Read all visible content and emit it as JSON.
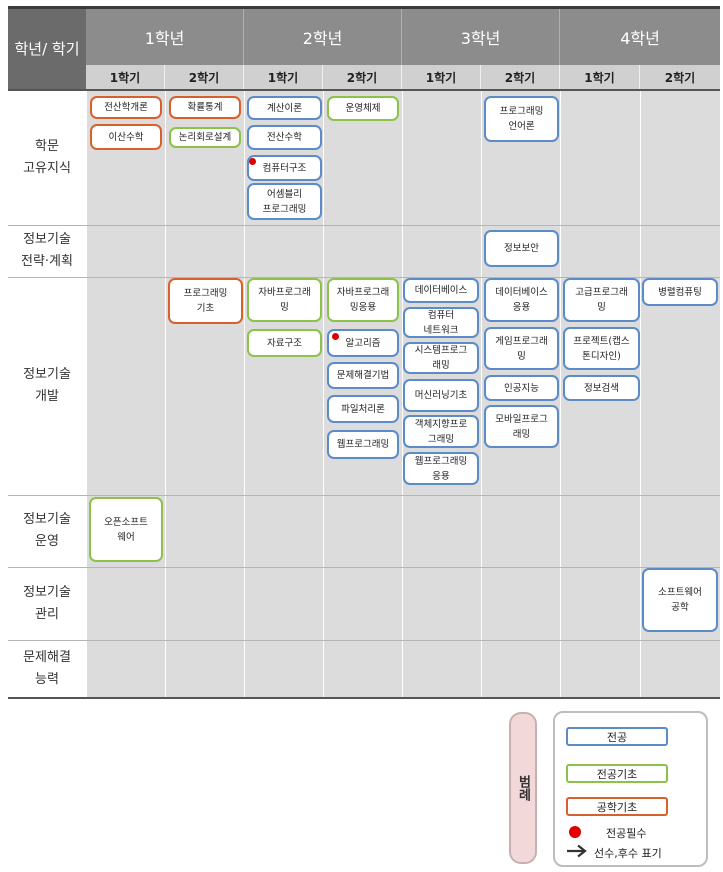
{
  "header": {
    "corner": "학년/\n학기",
    "years": [
      "1학년",
      "2학년",
      "3학년",
      "4학년"
    ],
    "semesters": [
      "1학기",
      "2학기",
      "1학기",
      "2학기",
      "1학기",
      "2학기",
      "1학기",
      "2학기"
    ]
  },
  "rows": [
    {
      "label": "학문\n고유지식"
    },
    {
      "label": "정보기술\n전략·계획"
    },
    {
      "label": "정보기술\n개발"
    },
    {
      "label": "정보기술\n운영"
    },
    {
      "label": "정보기술\n관리"
    },
    {
      "label": "문제해결\n능력"
    }
  ],
  "courses": {
    "c1": {
      "label": "전산학개론",
      "type": "eng"
    },
    "c2": {
      "label": "이산수학",
      "type": "eng"
    },
    "c3": {
      "label": "확률통계",
      "type": "eng"
    },
    "c4": {
      "label": "논리회로설계",
      "type": "basic"
    },
    "c5": {
      "label": "계산이론",
      "type": "major"
    },
    "c6": {
      "label": "전산수학",
      "type": "major"
    },
    "c7": {
      "label": "컴퓨터구조",
      "type": "major",
      "required": true
    },
    "c8": {
      "label": "어셈블리\n프로그래밍",
      "type": "major"
    },
    "c9": {
      "label": "운영체제",
      "type": "basic"
    },
    "c10": {
      "label": "프로그래밍\n언어론",
      "type": "major"
    },
    "c11": {
      "label": "정보보안",
      "type": "major"
    },
    "c12": {
      "label": "프로그래밍\n기초",
      "type": "eng"
    },
    "c13": {
      "label": "자바프로그래\n밍",
      "type": "basic"
    },
    "c14": {
      "label": "자료구조",
      "type": "basic"
    },
    "c15": {
      "label": "자바프로그래\n밍응용",
      "type": "basic"
    },
    "c16": {
      "label": "알고리즘",
      "type": "major",
      "required": true
    },
    "c17": {
      "label": "문제해결기법",
      "type": "major"
    },
    "c18": {
      "label": "파일처리론",
      "type": "major"
    },
    "c19": {
      "label": "웹프로그래밍",
      "type": "major"
    },
    "c20": {
      "label": "데이터베이스",
      "type": "major"
    },
    "c21": {
      "label": "컴퓨터\n네트워크",
      "type": "major"
    },
    "c22": {
      "label": "시스템프로그\n래밍",
      "type": "major"
    },
    "c23": {
      "label": "머신러닝기초",
      "type": "major"
    },
    "c24": {
      "label": "객체지향프로\n그래밍",
      "type": "major"
    },
    "c25": {
      "label": "웹프로그래밍\n응용",
      "type": "major"
    },
    "c26": {
      "label": "데이터베이스\n응용",
      "type": "major"
    },
    "c27": {
      "label": "게임프로그래\n밍",
      "type": "major"
    },
    "c28": {
      "label": "인공지능",
      "type": "major"
    },
    "c29": {
      "label": "모바일프로그\n래밍",
      "type": "major"
    },
    "c30": {
      "label": "고급프로그래\n밍",
      "type": "major"
    },
    "c31": {
      "label": "프로젝트(캡스\n톤디자인)",
      "type": "major"
    },
    "c32": {
      "label": "정보검색",
      "type": "major"
    },
    "c33": {
      "label": "병렬컴퓨팅",
      "type": "major"
    },
    "c34": {
      "label": "오픈소프트\n웨어",
      "type": "basic"
    },
    "c35": {
      "label": "소프트웨어\n공학",
      "type": "major"
    }
  },
  "legend": {
    "title": "범례",
    "major": "전공",
    "basic": "전공기초",
    "eng": "공학기초",
    "required": "전공필수",
    "prereq": "선수,후수 표기"
  },
  "colors": {
    "major": "#5b8bc9",
    "basic": "#8cc24a",
    "eng": "#d9602a",
    "required": "#e00000"
  }
}
